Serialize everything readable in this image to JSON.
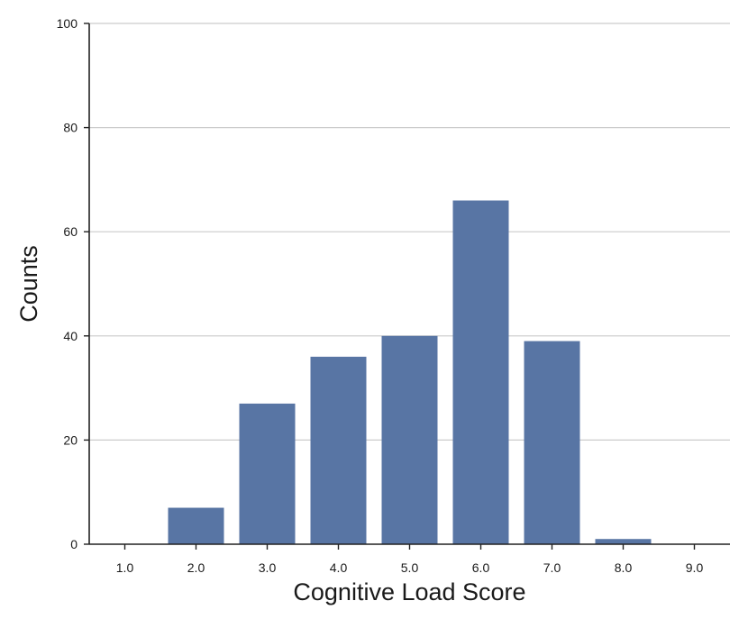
{
  "chart_data": {
    "type": "bar",
    "title": "",
    "xlabel": "Cognitive Load Score",
    "ylabel": "Counts",
    "categories": [
      "1.0",
      "2.0",
      "3.0",
      "4.0",
      "5.0",
      "6.0",
      "7.0",
      "8.0",
      "9.0"
    ],
    "values": [
      0,
      7,
      27,
      36,
      40,
      66,
      39,
      1,
      0
    ],
    "ylim": [
      0,
      100
    ],
    "yticks": [
      0,
      20,
      40,
      60,
      80,
      100
    ],
    "grid": "horizontal",
    "legend": "none",
    "colors": {
      "bar": "#5875a4",
      "grid": "#cccccc",
      "axis": "#222222"
    }
  }
}
